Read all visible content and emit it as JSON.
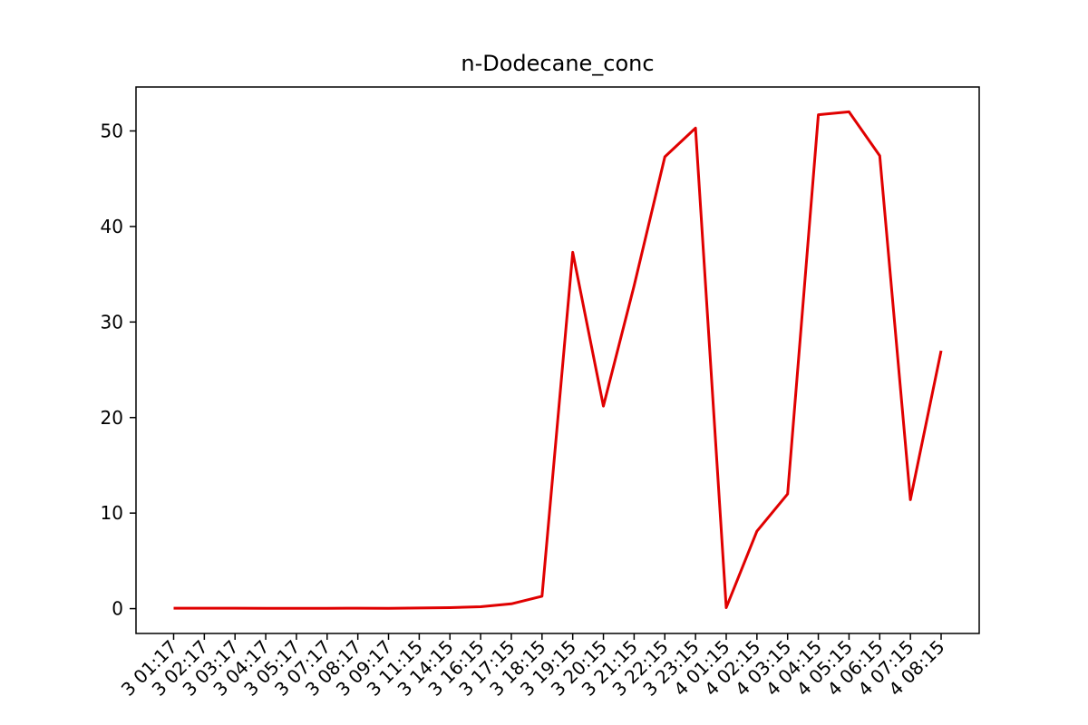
{
  "chart_data": {
    "type": "line",
    "title": "n-Dodecane_conc",
    "xlabel": "",
    "ylabel": "",
    "ylim": [
      -2.6,
      54.6
    ],
    "yticks": [
      0,
      10,
      20,
      30,
      40,
      50
    ],
    "grid": false,
    "legend": "none",
    "line_color": "#e00000",
    "x_tick_labels": [
      "3 01:17",
      "3 02:17",
      "3 03:17",
      "3 04:17",
      "3 05:17",
      "3 07:17",
      "3 08:17",
      "3 09:17",
      "3 11:15",
      "3 14:15",
      "3 16:15",
      "3 17:15",
      "3 18:15",
      "3 19:15",
      "3 20:15",
      "3 21:15",
      "3 22:15",
      "3 23:15",
      "4 01:15",
      "4 02:15",
      "4 03:15",
      "4 04:15",
      "4 05:15",
      "4 06:15",
      "4 07:15",
      "4 08:15"
    ],
    "series": [
      {
        "values": [
          0.05,
          0.05,
          0.05,
          0.04,
          0.04,
          0.04,
          0.05,
          0.04,
          0.07,
          0.1,
          0.2,
          0.5,
          1.3,
          37.3,
          21.2,
          33.8,
          47.3,
          50.3,
          0.1,
          8.1,
          12.0,
          51.7,
          52.0,
          47.4,
          11.4,
          27.0
        ]
      }
    ]
  }
}
